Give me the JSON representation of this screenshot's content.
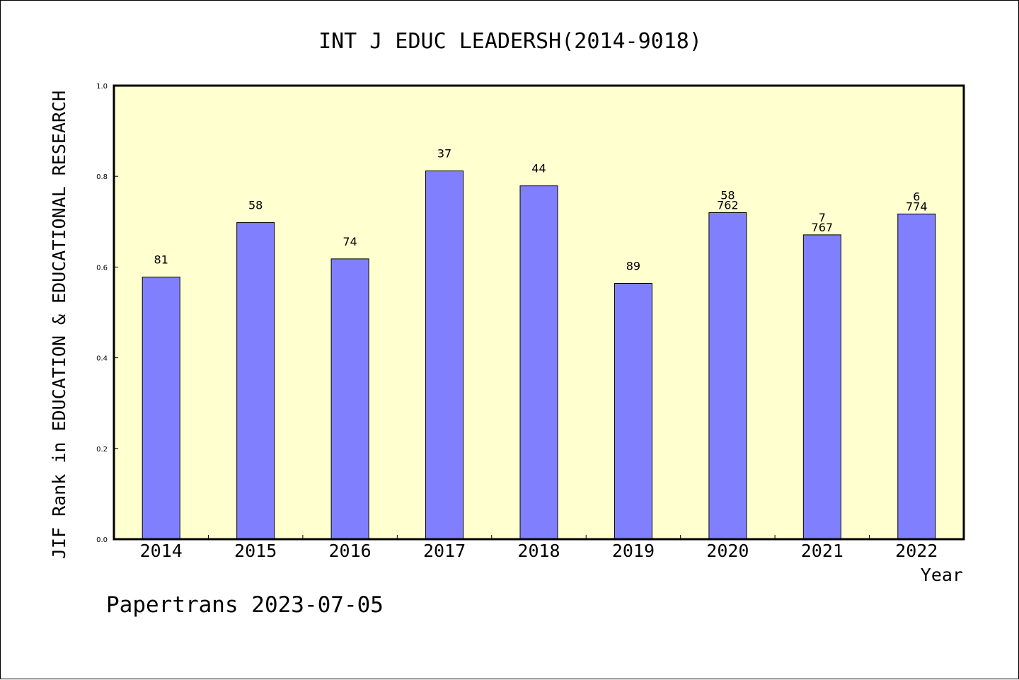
{
  "chart_data": {
    "type": "bar",
    "title": "INT J EDUC LEADERSH(2014-9018)",
    "xlabel": "Year",
    "ylabel": "JIF Rank in EDUCATION & EDUCATIONAL RESEARCH",
    "ylim": [
      0,
      1.0
    ],
    "yticks": [
      "0.0",
      "0.2",
      "0.4",
      "0.6",
      "0.8",
      "1.0"
    ],
    "categories": [
      "2014",
      "2015",
      "2016",
      "2017",
      "2018",
      "2019",
      "2020",
      "2021",
      "2022"
    ],
    "values": [
      0.578,
      0.698,
      0.618,
      0.812,
      0.779,
      0.564,
      0.72,
      0.671,
      0.717
    ],
    "bar_labels": [
      [
        "81"
      ],
      [
        "58"
      ],
      [
        "74"
      ],
      [
        "37"
      ],
      [
        "44"
      ],
      [
        "89"
      ],
      [
        "58",
        "762"
      ],
      [
        "7",
        "767"
      ],
      [
        "6",
        "774"
      ]
    ],
    "grid": false,
    "colors": {
      "bar": "#8080ff",
      "plot_background": "#ffffd0",
      "axis": "#000000"
    }
  },
  "footer": "Papertrans 2023-07-05"
}
